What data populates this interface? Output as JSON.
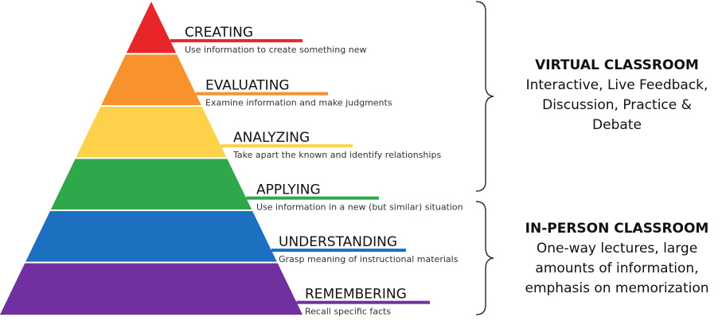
{
  "levels": [
    {
      "title": "CREATING",
      "description": "Use information to create something new",
      "color": "#e8262a"
    },
    {
      "title": "EVALUATING",
      "description": "Examine information and make judgments",
      "color": "#f7922e"
    },
    {
      "title": "ANALYZING",
      "description": "Take apart the known and identify relationships",
      "color": "#fdd14a"
    },
    {
      "title": "APPLYING",
      "description": "Use information in a new (but similar) situation",
      "color": "#2fa84b"
    },
    {
      "title": "UNDERSTANDING",
      "description": "Grasp meaning of instructional materials",
      "color": "#1d70c0"
    },
    {
      "title": "REMEMBERING",
      "description": "Recall specific facts",
      "color": "#7030a0"
    }
  ],
  "groups": [
    {
      "title": "VIRTUAL CLASSROOM",
      "lines": [
        "Interactive, Live Feedback,",
        "Discussion, Practice &",
        "Debate"
      ]
    },
    {
      "title": "IN-PERSON CLASSROOM",
      "lines": [
        "One-way lectures, large",
        "amounts of information,",
        "emphasis on memorization"
      ]
    }
  ]
}
